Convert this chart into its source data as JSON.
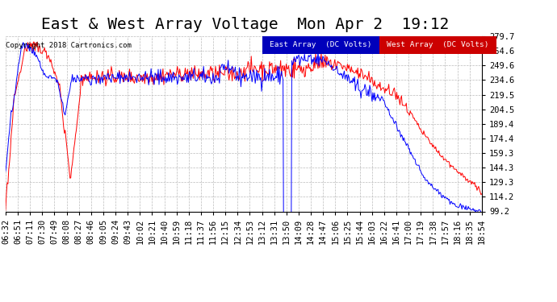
{
  "title": "East & West Array Voltage  Mon Apr 2  19:12",
  "copyright": "Copyright 2018 Cartronics.com",
  "legend_east": "East Array  (DC Volts)",
  "legend_west": "West Array  (DC Volts)",
  "east_color": "#0000ff",
  "west_color": "#ff0000",
  "legend_east_bg": "#0000bb",
  "legend_west_bg": "#cc0000",
  "ymin": 99.2,
  "ymax": 279.7,
  "yticks": [
    99.2,
    114.2,
    129.3,
    144.3,
    159.3,
    174.4,
    189.4,
    204.5,
    219.5,
    234.6,
    249.6,
    264.6,
    279.7
  ],
  "background_color": "#ffffff",
  "plot_bg": "#ffffff",
  "grid_color": "#bbbbbb",
  "title_fontsize": 14,
  "tick_fontsize": 7.5,
  "x_tick_labels": [
    "06:32",
    "06:51",
    "07:11",
    "07:30",
    "07:49",
    "08:08",
    "08:27",
    "08:46",
    "09:05",
    "09:24",
    "09:43",
    "10:02",
    "10:21",
    "10:40",
    "10:59",
    "11:18",
    "11:37",
    "11:56",
    "12:15",
    "12:34",
    "12:53",
    "13:12",
    "13:31",
    "13:50",
    "14:09",
    "14:28",
    "14:47",
    "15:06",
    "15:25",
    "15:44",
    "16:03",
    "16:22",
    "16:41",
    "17:00",
    "17:19",
    "17:38",
    "17:57",
    "18:16",
    "18:35",
    "18:54"
  ]
}
